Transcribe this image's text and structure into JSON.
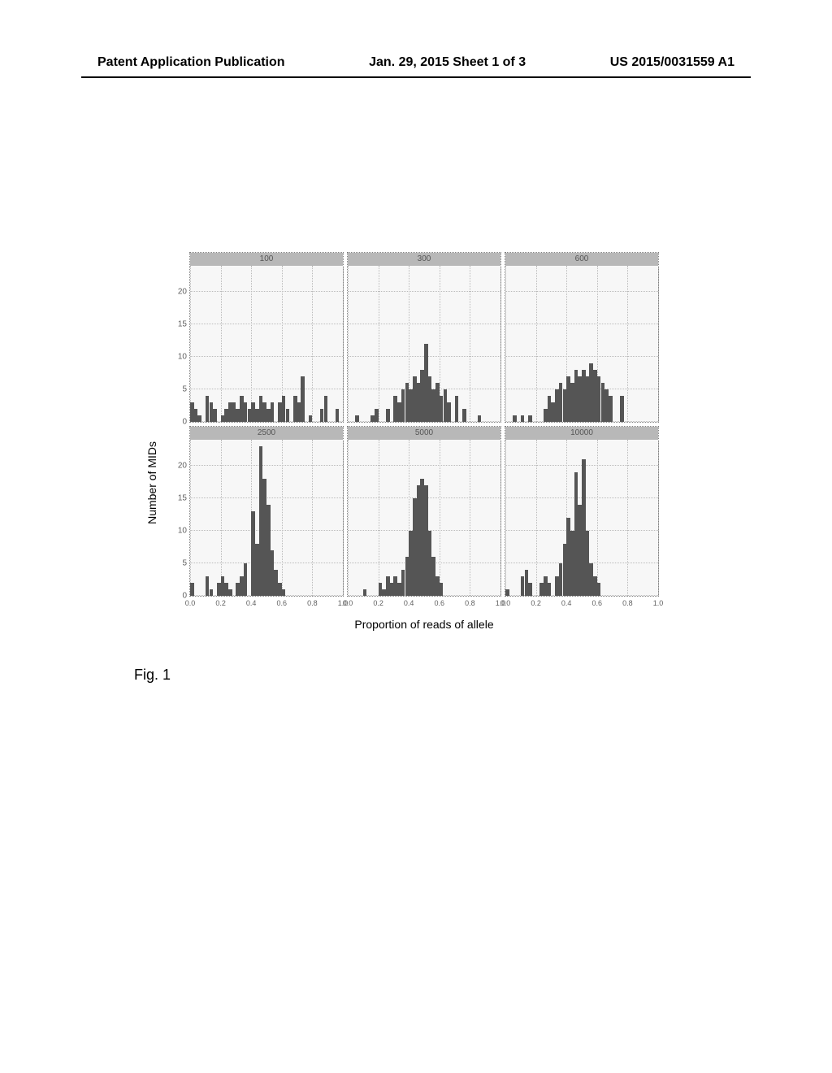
{
  "header": {
    "left": "Patent Application Publication",
    "center": "Jan. 29, 2015  Sheet 1 of 3",
    "right": "US 2015/0031559 A1"
  },
  "figure": {
    "caption": "Fig. 1",
    "ylabel": "Number of MIDs",
    "xlabel": "Proportion of reads of allele",
    "background_color": "#f7f7f7",
    "grid_color": "#bbbbbb",
    "bar_color": "#555555",
    "title_bg": "#b8b8b8",
    "font_size_label": 14,
    "font_size_tick": 10,
    "panels": [
      {
        "title": "100",
        "xlim": [
          0,
          1
        ],
        "ylim": [
          0,
          24
        ],
        "yticks": [
          0,
          5,
          10,
          15,
          20
        ],
        "xticks": [],
        "show_yticks": true,
        "bar_width": 0.025,
        "bars": [
          {
            "x": 0.0,
            "y": 3
          },
          {
            "x": 0.025,
            "y": 2
          },
          {
            "x": 0.05,
            "y": 1
          },
          {
            "x": 0.1,
            "y": 4
          },
          {
            "x": 0.125,
            "y": 3
          },
          {
            "x": 0.15,
            "y": 2
          },
          {
            "x": 0.2,
            "y": 1
          },
          {
            "x": 0.225,
            "y": 2
          },
          {
            "x": 0.25,
            "y": 3
          },
          {
            "x": 0.275,
            "y": 3
          },
          {
            "x": 0.3,
            "y": 2
          },
          {
            "x": 0.325,
            "y": 4
          },
          {
            "x": 0.35,
            "y": 3
          },
          {
            "x": 0.375,
            "y": 2
          },
          {
            "x": 0.4,
            "y": 3
          },
          {
            "x": 0.425,
            "y": 2
          },
          {
            "x": 0.45,
            "y": 4
          },
          {
            "x": 0.475,
            "y": 3
          },
          {
            "x": 0.5,
            "y": 2
          },
          {
            "x": 0.525,
            "y": 3
          },
          {
            "x": 0.575,
            "y": 3
          },
          {
            "x": 0.6,
            "y": 4
          },
          {
            "x": 0.625,
            "y": 2
          },
          {
            "x": 0.675,
            "y": 4
          },
          {
            "x": 0.7,
            "y": 3
          },
          {
            "x": 0.725,
            "y": 7
          },
          {
            "x": 0.775,
            "y": 1
          },
          {
            "x": 0.85,
            "y": 2
          },
          {
            "x": 0.875,
            "y": 4
          },
          {
            "x": 0.95,
            "y": 2
          }
        ]
      },
      {
        "title": "300",
        "xlim": [
          0,
          1
        ],
        "ylim": [
          0,
          24
        ],
        "yticks": [
          0,
          5,
          10,
          15,
          20
        ],
        "xticks": [],
        "show_yticks": false,
        "bar_width": 0.025,
        "bars": [
          {
            "x": 0.05,
            "y": 1
          },
          {
            "x": 0.15,
            "y": 1
          },
          {
            "x": 0.175,
            "y": 2
          },
          {
            "x": 0.25,
            "y": 2
          },
          {
            "x": 0.3,
            "y": 4
          },
          {
            "x": 0.325,
            "y": 3
          },
          {
            "x": 0.35,
            "y": 5
          },
          {
            "x": 0.375,
            "y": 6
          },
          {
            "x": 0.4,
            "y": 5
          },
          {
            "x": 0.425,
            "y": 7
          },
          {
            "x": 0.45,
            "y": 6
          },
          {
            "x": 0.475,
            "y": 8
          },
          {
            "x": 0.5,
            "y": 12
          },
          {
            "x": 0.525,
            "y": 7
          },
          {
            "x": 0.55,
            "y": 5
          },
          {
            "x": 0.575,
            "y": 6
          },
          {
            "x": 0.6,
            "y": 4
          },
          {
            "x": 0.625,
            "y": 5
          },
          {
            "x": 0.65,
            "y": 3
          },
          {
            "x": 0.7,
            "y": 4
          },
          {
            "x": 0.75,
            "y": 2
          },
          {
            "x": 0.85,
            "y": 1
          }
        ]
      },
      {
        "title": "600",
        "xlim": [
          0,
          1
        ],
        "ylim": [
          0,
          24
        ],
        "yticks": [
          0,
          5,
          10,
          15,
          20
        ],
        "xticks": [],
        "show_yticks": false,
        "bar_width": 0.025,
        "bars": [
          {
            "x": 0.05,
            "y": 1
          },
          {
            "x": 0.1,
            "y": 1
          },
          {
            "x": 0.15,
            "y": 1
          },
          {
            "x": 0.25,
            "y": 2
          },
          {
            "x": 0.275,
            "y": 4
          },
          {
            "x": 0.3,
            "y": 3
          },
          {
            "x": 0.325,
            "y": 5
          },
          {
            "x": 0.35,
            "y": 6
          },
          {
            "x": 0.375,
            "y": 5
          },
          {
            "x": 0.4,
            "y": 7
          },
          {
            "x": 0.425,
            "y": 6
          },
          {
            "x": 0.45,
            "y": 8
          },
          {
            "x": 0.475,
            "y": 7
          },
          {
            "x": 0.5,
            "y": 8
          },
          {
            "x": 0.525,
            "y": 7
          },
          {
            "x": 0.55,
            "y": 9
          },
          {
            "x": 0.575,
            "y": 8
          },
          {
            "x": 0.6,
            "y": 7
          },
          {
            "x": 0.625,
            "y": 6
          },
          {
            "x": 0.65,
            "y": 5
          },
          {
            "x": 0.675,
            "y": 4
          },
          {
            "x": 0.75,
            "y": 4
          }
        ]
      },
      {
        "title": "2500",
        "xlim": [
          0,
          1
        ],
        "ylim": [
          0,
          24
        ],
        "yticks": [
          0,
          5,
          10,
          15,
          20
        ],
        "xticks": [
          0.0,
          0.2,
          0.4,
          0.6,
          0.8,
          1.0
        ],
        "show_yticks": true,
        "bar_width": 0.025,
        "bars": [
          {
            "x": 0.0,
            "y": 2
          },
          {
            "x": 0.1,
            "y": 3
          },
          {
            "x": 0.125,
            "y": 1
          },
          {
            "x": 0.175,
            "y": 2
          },
          {
            "x": 0.2,
            "y": 3
          },
          {
            "x": 0.225,
            "y": 2
          },
          {
            "x": 0.25,
            "y": 1
          },
          {
            "x": 0.3,
            "y": 2
          },
          {
            "x": 0.325,
            "y": 3
          },
          {
            "x": 0.35,
            "y": 5
          },
          {
            "x": 0.4,
            "y": 13
          },
          {
            "x": 0.425,
            "y": 8
          },
          {
            "x": 0.45,
            "y": 23
          },
          {
            "x": 0.475,
            "y": 18
          },
          {
            "x": 0.5,
            "y": 14
          },
          {
            "x": 0.525,
            "y": 7
          },
          {
            "x": 0.55,
            "y": 4
          },
          {
            "x": 0.575,
            "y": 2
          },
          {
            "x": 0.6,
            "y": 1
          }
        ]
      },
      {
        "title": "5000",
        "xlim": [
          0,
          1
        ],
        "ylim": [
          0,
          24
        ],
        "yticks": [
          0,
          5,
          10,
          15,
          20
        ],
        "xticks": [
          0.0,
          0.2,
          0.4,
          0.6,
          0.8,
          1.0
        ],
        "show_yticks": false,
        "bar_width": 0.025,
        "bars": [
          {
            "x": 0.1,
            "y": 1
          },
          {
            "x": 0.2,
            "y": 2
          },
          {
            "x": 0.225,
            "y": 1
          },
          {
            "x": 0.25,
            "y": 3
          },
          {
            "x": 0.275,
            "y": 2
          },
          {
            "x": 0.3,
            "y": 3
          },
          {
            "x": 0.325,
            "y": 2
          },
          {
            "x": 0.35,
            "y": 4
          },
          {
            "x": 0.375,
            "y": 6
          },
          {
            "x": 0.4,
            "y": 10
          },
          {
            "x": 0.425,
            "y": 15
          },
          {
            "x": 0.45,
            "y": 17
          },
          {
            "x": 0.475,
            "y": 18
          },
          {
            "x": 0.5,
            "y": 17
          },
          {
            "x": 0.525,
            "y": 10
          },
          {
            "x": 0.55,
            "y": 6
          },
          {
            "x": 0.575,
            "y": 3
          },
          {
            "x": 0.6,
            "y": 2
          }
        ]
      },
      {
        "title": "10000",
        "xlim": [
          0,
          1
        ],
        "ylim": [
          0,
          24
        ],
        "yticks": [
          0,
          5,
          10,
          15,
          20
        ],
        "xticks": [
          0.0,
          0.2,
          0.4,
          0.6,
          0.8,
          1.0
        ],
        "show_yticks": false,
        "bar_width": 0.025,
        "bars": [
          {
            "x": 0.0,
            "y": 1
          },
          {
            "x": 0.1,
            "y": 3
          },
          {
            "x": 0.125,
            "y": 4
          },
          {
            "x": 0.15,
            "y": 2
          },
          {
            "x": 0.225,
            "y": 2
          },
          {
            "x": 0.25,
            "y": 3
          },
          {
            "x": 0.275,
            "y": 2
          },
          {
            "x": 0.325,
            "y": 3
          },
          {
            "x": 0.35,
            "y": 5
          },
          {
            "x": 0.375,
            "y": 8
          },
          {
            "x": 0.4,
            "y": 12
          },
          {
            "x": 0.425,
            "y": 10
          },
          {
            "x": 0.45,
            "y": 19
          },
          {
            "x": 0.475,
            "y": 14
          },
          {
            "x": 0.5,
            "y": 21
          },
          {
            "x": 0.525,
            "y": 10
          },
          {
            "x": 0.55,
            "y": 5
          },
          {
            "x": 0.575,
            "y": 3
          },
          {
            "x": 0.6,
            "y": 2
          }
        ]
      }
    ]
  }
}
